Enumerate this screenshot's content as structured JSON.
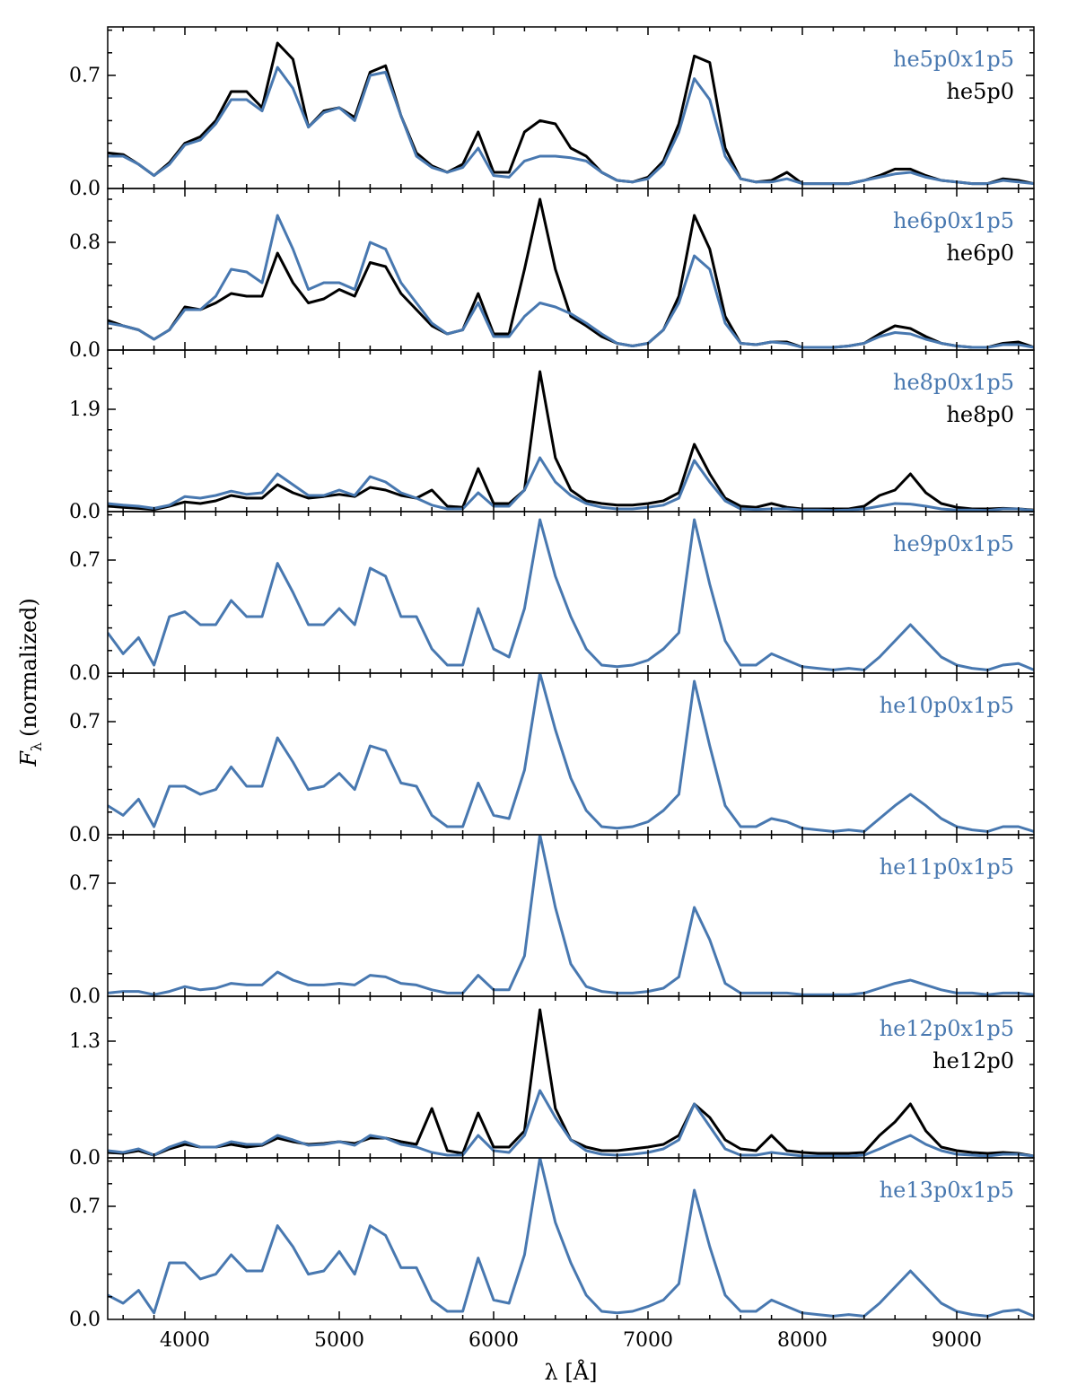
{
  "chart_data": {
    "type": "line",
    "xlabel": "λ [Å]",
    "ylabel": "F_λ (normalized)",
    "ylabel_parts": {
      "symbol": "F",
      "subscript": "λ",
      "text": "(normalized)"
    },
    "xlim": [
      3500,
      9500
    ],
    "xticks": [
      4000,
      5000,
      6000,
      7000,
      8000,
      9000
    ],
    "xtick_labels": [
      "4000",
      "5000",
      "6000",
      "7000",
      "8000",
      "9000"
    ],
    "colors": {
      "blue": "#4878b0",
      "black": "#000000"
    },
    "x": [
      3500,
      3600,
      3700,
      3800,
      3900,
      4000,
      4100,
      4200,
      4300,
      4400,
      4500,
      4600,
      4700,
      4800,
      4900,
      5000,
      5100,
      5200,
      5300,
      5400,
      5500,
      5600,
      5700,
      5800,
      5900,
      6000,
      6100,
      6200,
      6300,
      6400,
      6500,
      6600,
      6700,
      6800,
      6900,
      7000,
      7100,
      7200,
      7300,
      7400,
      7500,
      7600,
      7700,
      7800,
      7900,
      8000,
      8100,
      8200,
      8300,
      8400,
      8500,
      8600,
      8700,
      8800,
      8900,
      9000,
      9100,
      9200,
      9300,
      9400,
      9500
    ],
    "panels": [
      {
        "ylim": [
          0,
          1.0
        ],
        "yticks": [
          0.0,
          0.7
        ],
        "ytick_labels": [
          "0.0",
          "0.7"
        ],
        "series": [
          {
            "name": "he5p0x1p5",
            "color": "blue",
            "values": [
              0.2,
              0.2,
              0.15,
              0.08,
              0.15,
              0.27,
              0.3,
              0.4,
              0.55,
              0.55,
              0.48,
              0.75,
              0.62,
              0.38,
              0.47,
              0.5,
              0.42,
              0.7,
              0.72,
              0.45,
              0.2,
              0.13,
              0.1,
              0.13,
              0.25,
              0.08,
              0.07,
              0.17,
              0.2,
              0.2,
              0.19,
              0.17,
              0.1,
              0.05,
              0.04,
              0.06,
              0.15,
              0.35,
              0.68,
              0.55,
              0.2,
              0.06,
              0.04,
              0.04,
              0.06,
              0.03,
              0.03,
              0.03,
              0.03,
              0.05,
              0.07,
              0.09,
              0.1,
              0.07,
              0.05,
              0.04,
              0.03,
              0.03,
              0.05,
              0.04,
              0.03
            ]
          },
          {
            "name": "he5p0",
            "color": "black",
            "values": [
              0.22,
              0.21,
              0.15,
              0.08,
              0.16,
              0.28,
              0.32,
              0.42,
              0.6,
              0.6,
              0.5,
              0.9,
              0.8,
              0.38,
              0.48,
              0.5,
              0.44,
              0.72,
              0.76,
              0.45,
              0.22,
              0.14,
              0.1,
              0.15,
              0.35,
              0.1,
              0.1,
              0.35,
              0.42,
              0.4,
              0.25,
              0.2,
              0.1,
              0.05,
              0.04,
              0.07,
              0.17,
              0.4,
              0.82,
              0.78,
              0.25,
              0.06,
              0.04,
              0.05,
              0.1,
              0.03,
              0.03,
              0.03,
              0.03,
              0.05,
              0.08,
              0.12,
              0.12,
              0.08,
              0.05,
              0.04,
              0.03,
              0.03,
              0.06,
              0.05,
              0.03
            ]
          }
        ]
      },
      {
        "ylim": [
          0,
          1.2
        ],
        "yticks": [
          0.0,
          0.8
        ],
        "ytick_labels": [
          "0.0",
          "0.8"
        ],
        "series": [
          {
            "name": "he6p0x1p5",
            "color": "blue",
            "values": [
              0.2,
              0.18,
              0.15,
              0.08,
              0.15,
              0.3,
              0.3,
              0.4,
              0.6,
              0.58,
              0.5,
              1.0,
              0.75,
              0.45,
              0.5,
              0.5,
              0.45,
              0.8,
              0.75,
              0.5,
              0.35,
              0.2,
              0.12,
              0.15,
              0.35,
              0.1,
              0.1,
              0.25,
              0.35,
              0.32,
              0.27,
              0.2,
              0.12,
              0.05,
              0.03,
              0.05,
              0.15,
              0.35,
              0.7,
              0.6,
              0.2,
              0.05,
              0.04,
              0.06,
              0.05,
              0.02,
              0.02,
              0.02,
              0.03,
              0.05,
              0.1,
              0.13,
              0.12,
              0.08,
              0.05,
              0.03,
              0.02,
              0.02,
              0.04,
              0.04,
              0.02
            ]
          },
          {
            "name": "he6p0",
            "color": "black",
            "values": [
              0.22,
              0.18,
              0.15,
              0.08,
              0.15,
              0.32,
              0.3,
              0.35,
              0.42,
              0.4,
              0.4,
              0.72,
              0.5,
              0.35,
              0.38,
              0.45,
              0.4,
              0.65,
              0.62,
              0.42,
              0.3,
              0.18,
              0.12,
              0.15,
              0.42,
              0.12,
              0.12,
              0.6,
              1.12,
              0.6,
              0.25,
              0.18,
              0.1,
              0.05,
              0.03,
              0.05,
              0.15,
              0.4,
              1.0,
              0.75,
              0.25,
              0.05,
              0.04,
              0.06,
              0.06,
              0.02,
              0.02,
              0.02,
              0.03,
              0.05,
              0.12,
              0.18,
              0.16,
              0.1,
              0.05,
              0.03,
              0.02,
              0.02,
              0.05,
              0.06,
              0.02
            ]
          }
        ]
      },
      {
        "ylim": [
          0,
          3.0
        ],
        "yticks": [
          0.0,
          1.9
        ],
        "ytick_labels": [
          "0.0",
          "1.9"
        ],
        "series": [
          {
            "name": "he8p0x1p5",
            "color": "blue",
            "values": [
              0.15,
              0.12,
              0.1,
              0.06,
              0.12,
              0.28,
              0.25,
              0.3,
              0.38,
              0.32,
              0.35,
              0.7,
              0.5,
              0.3,
              0.3,
              0.4,
              0.3,
              0.65,
              0.55,
              0.35,
              0.25,
              0.12,
              0.05,
              0.05,
              0.35,
              0.1,
              0.1,
              0.4,
              1.0,
              0.55,
              0.3,
              0.15,
              0.08,
              0.05,
              0.05,
              0.08,
              0.12,
              0.25,
              0.95,
              0.55,
              0.2,
              0.05,
              0.04,
              0.05,
              0.05,
              0.03,
              0.03,
              0.02,
              0.03,
              0.05,
              0.1,
              0.15,
              0.14,
              0.1,
              0.05,
              0.03,
              0.03,
              0.02,
              0.05,
              0.05,
              0.02
            ]
          },
          {
            "name": "he8p0",
            "color": "black",
            "values": [
              0.1,
              0.08,
              0.06,
              0.04,
              0.1,
              0.18,
              0.15,
              0.2,
              0.3,
              0.25,
              0.25,
              0.5,
              0.35,
              0.25,
              0.28,
              0.32,
              0.28,
              0.45,
              0.4,
              0.3,
              0.25,
              0.4,
              0.1,
              0.08,
              0.8,
              0.15,
              0.15,
              0.4,
              2.6,
              1.0,
              0.4,
              0.2,
              0.15,
              0.12,
              0.12,
              0.15,
              0.2,
              0.35,
              1.25,
              0.7,
              0.25,
              0.1,
              0.08,
              0.15,
              0.08,
              0.05,
              0.05,
              0.05,
              0.05,
              0.1,
              0.3,
              0.4,
              0.7,
              0.35,
              0.15,
              0.08,
              0.05,
              0.05,
              0.06,
              0.05,
              0.03
            ]
          }
        ]
      },
      {
        "ylim": [
          0,
          1.0
        ],
        "yticks": [
          0.0,
          0.7
        ],
        "ytick_labels": [
          "0.0",
          "0.7"
        ],
        "series": [
          {
            "name": "he9p0x1p5",
            "color": "blue",
            "values": [
              0.25,
              0.12,
              0.22,
              0.05,
              0.35,
              0.38,
              0.3,
              0.3,
              0.45,
              0.35,
              0.35,
              0.68,
              0.5,
              0.3,
              0.3,
              0.4,
              0.3,
              0.65,
              0.6,
              0.35,
              0.35,
              0.15,
              0.05,
              0.05,
              0.4,
              0.15,
              0.1,
              0.4,
              0.95,
              0.6,
              0.35,
              0.15,
              0.05,
              0.04,
              0.05,
              0.08,
              0.15,
              0.25,
              0.95,
              0.55,
              0.2,
              0.05,
              0.05,
              0.12,
              0.08,
              0.04,
              0.03,
              0.02,
              0.03,
              0.02,
              0.1,
              0.2,
              0.3,
              0.2,
              0.1,
              0.05,
              0.03,
              0.02,
              0.05,
              0.06,
              0.02
            ]
          }
        ]
      },
      {
        "ylim": [
          0,
          1.0
        ],
        "yticks": [
          0.0,
          0.7
        ],
        "ytick_labels": [
          "0.0",
          "0.7"
        ],
        "series": [
          {
            "name": "he10p0x1p5",
            "color": "blue",
            "values": [
              0.18,
              0.12,
              0.22,
              0.05,
              0.3,
              0.3,
              0.25,
              0.28,
              0.42,
              0.3,
              0.3,
              0.6,
              0.45,
              0.28,
              0.3,
              0.38,
              0.28,
              0.55,
              0.52,
              0.32,
              0.3,
              0.12,
              0.05,
              0.05,
              0.32,
              0.12,
              0.1,
              0.4,
              1.0,
              0.65,
              0.35,
              0.15,
              0.05,
              0.04,
              0.05,
              0.08,
              0.15,
              0.25,
              0.95,
              0.55,
              0.18,
              0.05,
              0.05,
              0.1,
              0.08,
              0.04,
              0.03,
              0.02,
              0.03,
              0.02,
              0.1,
              0.18,
              0.25,
              0.18,
              0.1,
              0.05,
              0.03,
              0.02,
              0.05,
              0.05,
              0.02
            ]
          }
        ]
      },
      {
        "ylim": [
          0,
          1.0
        ],
        "yticks": [
          0.0,
          0.7
        ],
        "ytick_labels": [
          "0.0",
          "0.7"
        ],
        "series": [
          {
            "name": "he11p0x1p5",
            "color": "blue",
            "values": [
              0.02,
              0.03,
              0.03,
              0.01,
              0.03,
              0.06,
              0.04,
              0.05,
              0.08,
              0.07,
              0.07,
              0.15,
              0.1,
              0.07,
              0.07,
              0.08,
              0.07,
              0.13,
              0.12,
              0.08,
              0.07,
              0.04,
              0.02,
              0.02,
              0.13,
              0.04,
              0.04,
              0.25,
              1.0,
              0.55,
              0.2,
              0.06,
              0.03,
              0.02,
              0.02,
              0.03,
              0.05,
              0.12,
              0.55,
              0.35,
              0.08,
              0.02,
              0.02,
              0.02,
              0.02,
              0.01,
              0.01,
              0.01,
              0.01,
              0.02,
              0.05,
              0.08,
              0.1,
              0.07,
              0.04,
              0.02,
              0.02,
              0.01,
              0.02,
              0.02,
              0.01
            ]
          }
        ]
      },
      {
        "ylim": [
          0,
          1.8
        ],
        "yticks": [
          0.0,
          1.3
        ],
        "ytick_labels": [
          "0.0",
          "1.3"
        ],
        "series": [
          {
            "name": "he12p0x1p5",
            "color": "blue",
            "values": [
              0.08,
              0.06,
              0.1,
              0.03,
              0.12,
              0.18,
              0.12,
              0.12,
              0.18,
              0.15,
              0.15,
              0.25,
              0.2,
              0.14,
              0.15,
              0.18,
              0.14,
              0.25,
              0.22,
              0.15,
              0.12,
              0.06,
              0.03,
              0.03,
              0.25,
              0.08,
              0.06,
              0.25,
              0.75,
              0.45,
              0.2,
              0.08,
              0.04,
              0.03,
              0.04,
              0.06,
              0.1,
              0.2,
              0.6,
              0.35,
              0.1,
              0.03,
              0.03,
              0.06,
              0.04,
              0.02,
              0.02,
              0.02,
              0.02,
              0.03,
              0.1,
              0.18,
              0.25,
              0.15,
              0.08,
              0.04,
              0.03,
              0.02,
              0.04,
              0.04,
              0.02
            ]
          },
          {
            "name": "he12p0",
            "color": "black",
            "values": [
              0.06,
              0.05,
              0.08,
              0.03,
              0.1,
              0.15,
              0.12,
              0.12,
              0.15,
              0.12,
              0.14,
              0.22,
              0.18,
              0.15,
              0.16,
              0.18,
              0.16,
              0.22,
              0.22,
              0.18,
              0.15,
              0.55,
              0.08,
              0.05,
              0.5,
              0.12,
              0.12,
              0.3,
              1.65,
              0.55,
              0.2,
              0.12,
              0.08,
              0.08,
              0.1,
              0.12,
              0.15,
              0.25,
              0.6,
              0.45,
              0.2,
              0.1,
              0.08,
              0.25,
              0.08,
              0.06,
              0.05,
              0.05,
              0.05,
              0.06,
              0.25,
              0.4,
              0.6,
              0.3,
              0.12,
              0.08,
              0.06,
              0.05,
              0.06,
              0.05,
              0.02
            ]
          }
        ]
      },
      {
        "ylim": [
          0,
          1.0
        ],
        "yticks": [
          0.0,
          0.7
        ],
        "ytick_labels": [
          "0.0",
          "0.7"
        ],
        "series": [
          {
            "name": "he13p0x1p5",
            "color": "blue",
            "values": [
              0.15,
              0.1,
              0.18,
              0.04,
              0.35,
              0.35,
              0.25,
              0.28,
              0.4,
              0.3,
              0.3,
              0.58,
              0.45,
              0.28,
              0.3,
              0.42,
              0.28,
              0.58,
              0.52,
              0.32,
              0.32,
              0.12,
              0.05,
              0.05,
              0.38,
              0.12,
              0.1,
              0.4,
              1.0,
              0.6,
              0.35,
              0.15,
              0.05,
              0.04,
              0.05,
              0.08,
              0.12,
              0.22,
              0.8,
              0.45,
              0.15,
              0.05,
              0.05,
              0.12,
              0.08,
              0.04,
              0.03,
              0.02,
              0.03,
              0.02,
              0.1,
              0.2,
              0.3,
              0.2,
              0.1,
              0.05,
              0.03,
              0.02,
              0.05,
              0.06,
              0.02
            ]
          }
        ]
      }
    ]
  }
}
